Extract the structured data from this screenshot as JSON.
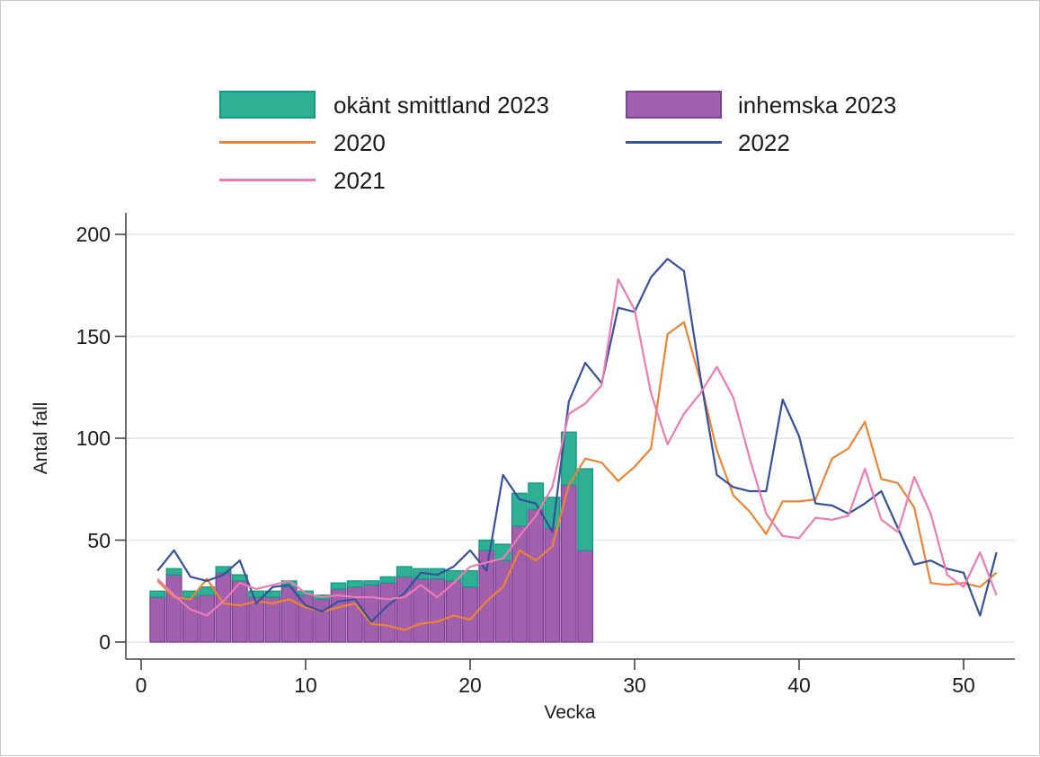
{
  "chart_data": {
    "type": "composite",
    "title": "",
    "xlabel": "Vecka",
    "ylabel": "Antal fall",
    "xlim": [
      0,
      53
    ],
    "ylim": [
      0,
      200
    ],
    "xticks": [
      0,
      10,
      20,
      30,
      40,
      50
    ],
    "yticks": [
      0,
      50,
      100,
      150,
      200
    ],
    "grid": "horizontal",
    "legend_position": "top",
    "colors": {
      "okant_fill": "#2FAF94",
      "okant_border": "#119C82",
      "inhemska_fill": "#A060AE",
      "inhemska_border": "#803E95",
      "line_2020": "#EF8333",
      "line_2021": "#35519E",
      "line_2022": "#EF7AB4",
      "gridline": "#E7EDF0",
      "axis": "#444444"
    },
    "bars": {
      "type": "stacked-bar",
      "weeks": [
        1,
        2,
        3,
        4,
        5,
        6,
        7,
        8,
        9,
        10,
        11,
        12,
        13,
        14,
        15,
        16,
        17,
        18,
        19,
        20,
        21,
        22,
        23,
        24,
        25,
        26,
        27
      ],
      "series": [
        {
          "name": "inhemska 2023",
          "values": [
            22,
            33,
            22,
            23,
            34,
            30,
            22,
            22,
            27,
            23,
            21,
            26,
            27,
            28,
            29,
            32,
            31,
            31,
            30,
            27,
            45,
            40,
            57,
            65,
            56,
            77,
            45
          ]
        },
        {
          "name": "okänt smittland 2023",
          "values": [
            3,
            3,
            3,
            4,
            3,
            3,
            3,
            3,
            3,
            2,
            2,
            3,
            3,
            2,
            3,
            5,
            5,
            5,
            5,
            8,
            5,
            8,
            16,
            13,
            15,
            26,
            40
          ]
        }
      ]
    },
    "lines": {
      "weeks": [
        1,
        2,
        3,
        4,
        5,
        6,
        7,
        8,
        9,
        10,
        11,
        12,
        13,
        14,
        15,
        16,
        17,
        18,
        19,
        20,
        21,
        22,
        23,
        24,
        25,
        26,
        27,
        28,
        29,
        30,
        31,
        32,
        33,
        34,
        35,
        36,
        37,
        38,
        39,
        40,
        41,
        42,
        43,
        44,
        45,
        46,
        47,
        48,
        49,
        50,
        51,
        52
      ],
      "series": [
        {
          "name": "2020",
          "values": [
            30,
            22,
            21,
            31,
            19,
            18,
            20,
            19,
            21,
            17,
            15,
            17,
            19,
            9,
            8,
            6,
            9,
            10,
            13,
            11,
            20,
            27,
            45,
            40,
            47,
            77,
            90,
            88,
            79,
            86,
            95,
            151,
            157,
            128,
            94,
            72,
            64,
            53,
            69,
            69,
            70,
            90,
            95,
            108,
            80,
            78,
            66,
            29,
            28,
            29,
            27,
            34
          ]
        },
        {
          "name": "2021",
          "values": [
            35,
            45,
            32,
            30,
            33,
            40,
            19,
            27,
            28,
            18,
            15,
            20,
            21,
            10,
            18,
            24,
            34,
            33,
            37,
            45,
            35,
            82,
            70,
            68,
            54,
            118,
            137,
            127,
            164,
            162,
            179,
            188,
            182,
            130,
            82,
            76,
            74,
            74,
            119,
            101,
            68,
            67,
            63,
            68,
            74,
            56,
            38,
            40,
            36,
            34,
            13,
            44
          ]
        },
        {
          "name": "2022",
          "values": [
            31,
            23,
            16,
            13,
            20,
            29,
            26,
            28,
            30,
            24,
            22,
            23,
            22,
            22,
            21,
            22,
            28,
            22,
            29,
            37,
            39,
            41,
            52,
            62,
            76,
            112,
            117,
            126,
            178,
            163,
            122,
            97,
            112,
            122,
            135,
            120,
            90,
            63,
            52,
            51,
            61,
            60,
            62,
            85,
            60,
            54,
            81,
            63,
            33,
            27,
            44,
            23
          ]
        }
      ]
    },
    "legend": [
      {
        "label": "okänt smittland 2023",
        "kind": "rect",
        "color": "#2FAF94"
      },
      {
        "label": "inhemska 2023",
        "kind": "rect",
        "color": "#A060AE"
      },
      {
        "label": "2020",
        "kind": "line",
        "color": "#EF8333"
      },
      {
        "label": "2021",
        "kind": "line",
        "color": "#35519E"
      },
      {
        "label": "2022",
        "kind": "line",
        "color": "#EF7AB4"
      }
    ]
  }
}
